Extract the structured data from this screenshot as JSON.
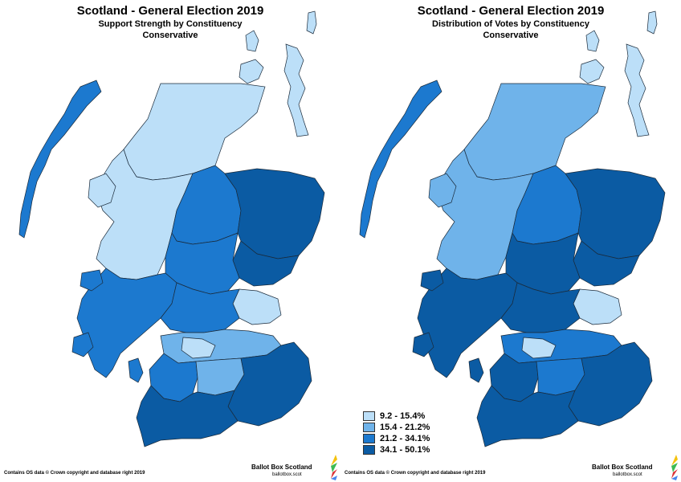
{
  "colors": {
    "band1": "#bcdff8",
    "band2": "#6fb3ea",
    "band3": "#1c79cf",
    "band4": "#0b5ba3",
    "outline": "#1a2a3a"
  },
  "left_panel": {
    "title": "Scotland - General Election 2019",
    "subtitle": "Support Strength by Constituency",
    "party": "Conservative",
    "credit": "Contains OS data © Crown copyright and database right 2019",
    "brand_name": "Ballot Box Scotland",
    "brand_url": "ballotbox.scot"
  },
  "right_panel": {
    "title": "Scotland - General Election 2019",
    "subtitle": "Distribution of Votes by Constituency",
    "party": "Conservative",
    "credit": "Contains OS data © Crown copyright and database right 2019",
    "brand_name": "Ballot Box Scotland",
    "brand_url": "ballotbox.scot"
  },
  "legend": [
    {
      "label": "9.2 - 15.4%",
      "color": "#bcdff8"
    },
    {
      "label": "15.4 - 21.2%",
      "color": "#6fb3ea"
    },
    {
      "label": "21.2 - 34.1%",
      "color": "#1c79cf"
    },
    {
      "label": "34.1 - 50.1%",
      "color": "#0b5ba3"
    }
  ],
  "icons": {
    "brand_logo": "ballot-box-logo-icon"
  }
}
